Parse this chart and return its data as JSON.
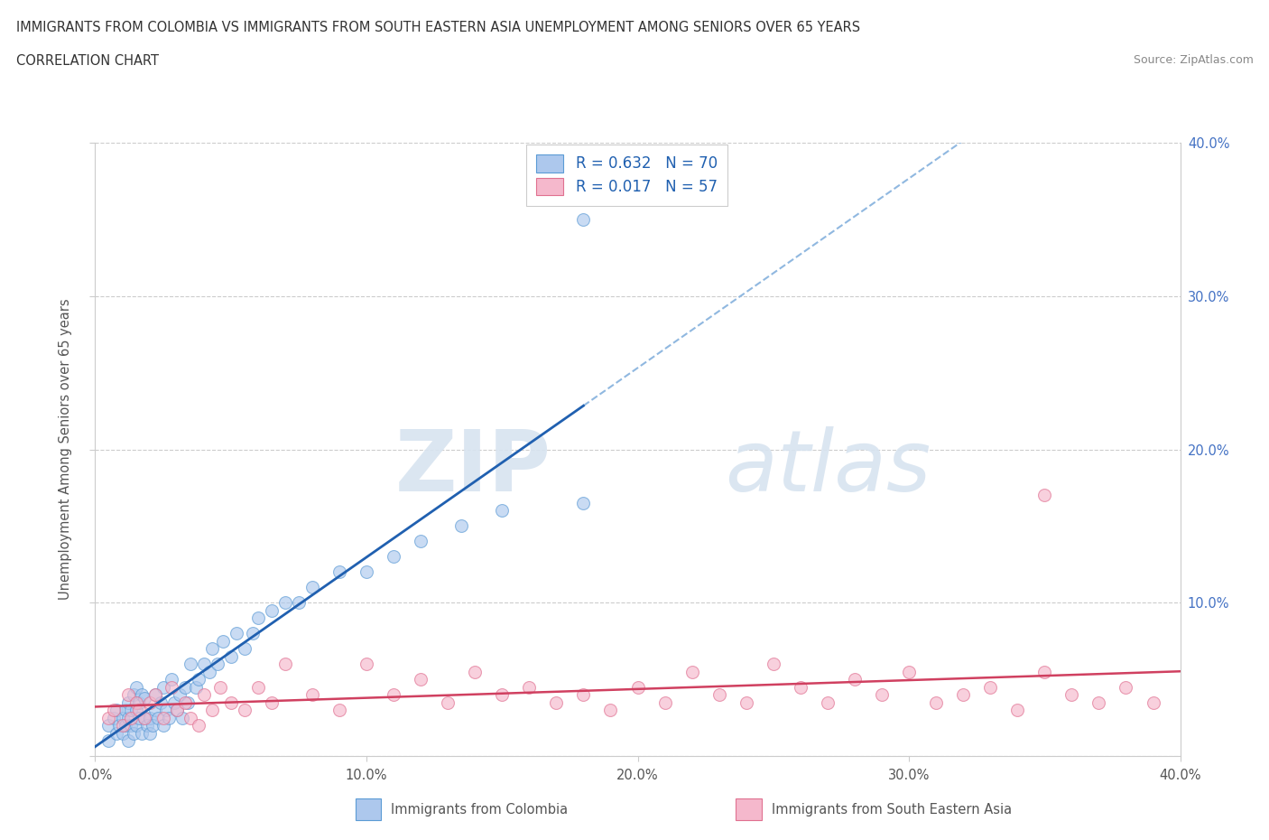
{
  "title_line1": "IMMIGRANTS FROM COLOMBIA VS IMMIGRANTS FROM SOUTH EASTERN ASIA UNEMPLOYMENT AMONG SENIORS OVER 65 YEARS",
  "title_line2": "CORRELATION CHART",
  "source_text": "Source: ZipAtlas.com",
  "ylabel": "Unemployment Among Seniors over 65 years",
  "xlim": [
    0.0,
    0.4
  ],
  "ylim": [
    0.0,
    0.4
  ],
  "xticks": [
    0.0,
    0.1,
    0.2,
    0.3,
    0.4
  ],
  "yticks": [
    0.0,
    0.1,
    0.2,
    0.3,
    0.4
  ],
  "xtick_labels": [
    "0.0%",
    "10.0%",
    "20.0%",
    "30.0%",
    "40.0%"
  ],
  "ytick_labels_right": [
    "",
    "10.0%",
    "20.0%",
    "30.0%",
    "40.0%"
  ],
  "colombia_color": "#adc8ed",
  "colombia_edge": "#5b9bd5",
  "sea_color": "#f5b8cc",
  "sea_edge": "#e07090",
  "trend_colombia_color": "#2060b0",
  "trend_sea_color": "#d04060",
  "trend_dashed_color": "#90b8e0",
  "R_colombia": 0.632,
  "N_colombia": 70,
  "R_sea": 0.017,
  "N_sea": 57,
  "legend_label_colombia": "Immigrants from Colombia",
  "legend_label_sea": "Immigrants from South Eastern Asia",
  "watermark_zip": "ZIP",
  "watermark_atlas": "atlas",
  "colombia_x": [
    0.005,
    0.005,
    0.007,
    0.008,
    0.008,
    0.009,
    0.01,
    0.01,
    0.011,
    0.011,
    0.012,
    0.012,
    0.012,
    0.013,
    0.013,
    0.014,
    0.014,
    0.015,
    0.015,
    0.015,
    0.016,
    0.016,
    0.017,
    0.017,
    0.018,
    0.018,
    0.019,
    0.02,
    0.02,
    0.021,
    0.022,
    0.022,
    0.023,
    0.024,
    0.025,
    0.025,
    0.026,
    0.027,
    0.028,
    0.029,
    0.03,
    0.031,
    0.032,
    0.033,
    0.034,
    0.035,
    0.037,
    0.038,
    0.04,
    0.042,
    0.043,
    0.045,
    0.047,
    0.05,
    0.052,
    0.055,
    0.058,
    0.06,
    0.065,
    0.07,
    0.075,
    0.08,
    0.09,
    0.1,
    0.11,
    0.12,
    0.135,
    0.15,
    0.18,
    0.18
  ],
  "colombia_y": [
    0.01,
    0.02,
    0.025,
    0.015,
    0.03,
    0.02,
    0.015,
    0.025,
    0.02,
    0.03,
    0.01,
    0.025,
    0.035,
    0.02,
    0.03,
    0.015,
    0.04,
    0.02,
    0.03,
    0.045,
    0.025,
    0.035,
    0.015,
    0.04,
    0.025,
    0.038,
    0.02,
    0.015,
    0.025,
    0.02,
    0.03,
    0.04,
    0.025,
    0.035,
    0.02,
    0.045,
    0.03,
    0.025,
    0.05,
    0.035,
    0.03,
    0.04,
    0.025,
    0.045,
    0.035,
    0.06,
    0.045,
    0.05,
    0.06,
    0.055,
    0.07,
    0.06,
    0.075,
    0.065,
    0.08,
    0.07,
    0.08,
    0.09,
    0.095,
    0.1,
    0.1,
    0.11,
    0.12,
    0.12,
    0.13,
    0.14,
    0.15,
    0.16,
    0.165,
    0.35
  ],
  "sea_x": [
    0.005,
    0.007,
    0.01,
    0.012,
    0.013,
    0.015,
    0.016,
    0.018,
    0.02,
    0.022,
    0.025,
    0.028,
    0.03,
    0.033,
    0.035,
    0.038,
    0.04,
    0.043,
    0.046,
    0.05,
    0.055,
    0.06,
    0.065,
    0.07,
    0.08,
    0.09,
    0.1,
    0.11,
    0.12,
    0.13,
    0.14,
    0.15,
    0.16,
    0.17,
    0.18,
    0.19,
    0.2,
    0.21,
    0.22,
    0.23,
    0.24,
    0.25,
    0.26,
    0.27,
    0.28,
    0.29,
    0.3,
    0.31,
    0.32,
    0.33,
    0.34,
    0.35,
    0.36,
    0.37,
    0.38,
    0.39,
    0.35
  ],
  "sea_y": [
    0.025,
    0.03,
    0.02,
    0.04,
    0.025,
    0.035,
    0.03,
    0.025,
    0.035,
    0.04,
    0.025,
    0.045,
    0.03,
    0.035,
    0.025,
    0.02,
    0.04,
    0.03,
    0.045,
    0.035,
    0.03,
    0.045,
    0.035,
    0.06,
    0.04,
    0.03,
    0.06,
    0.04,
    0.05,
    0.035,
    0.055,
    0.04,
    0.045,
    0.035,
    0.04,
    0.03,
    0.045,
    0.035,
    0.055,
    0.04,
    0.035,
    0.06,
    0.045,
    0.035,
    0.05,
    0.04,
    0.055,
    0.035,
    0.04,
    0.045,
    0.03,
    0.055,
    0.04,
    0.035,
    0.045,
    0.035,
    0.17
  ]
}
